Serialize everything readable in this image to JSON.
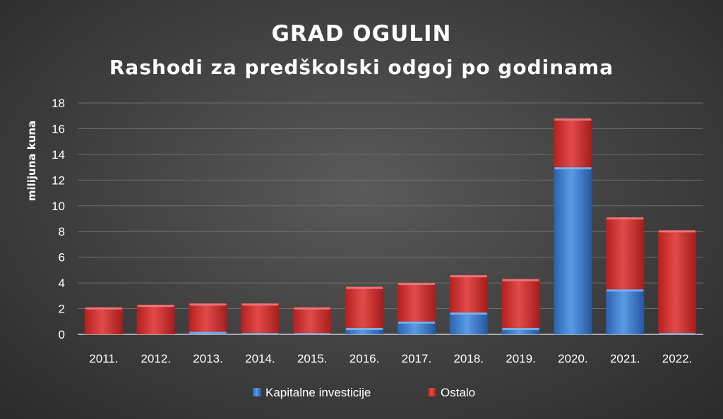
{
  "chart_data": {
    "type": "bar",
    "stacked": true,
    "title": "GRAD OGULIN",
    "subtitle": "Rashodi za predškolski odgoj po godinama",
    "xlabel": "",
    "ylabel": "milijuna kuna",
    "ylim": [
      0,
      18
    ],
    "yticks": [
      0,
      2,
      4,
      6,
      8,
      10,
      12,
      14,
      16,
      18
    ],
    "grid": true,
    "legend_position": "bottom",
    "categories": [
      "2011.",
      "2012.",
      "2013.",
      "2014.",
      "2015.",
      "2016.",
      "2017.",
      "2018.",
      "2019.",
      "2020.",
      "2021.",
      "2022."
    ],
    "series": [
      {
        "name": "Kapitalne investicije",
        "color": "#3b7fd4",
        "values": [
          0.0,
          0.0,
          0.2,
          0.1,
          0.1,
          0.5,
          1.0,
          1.7,
          0.5,
          13.0,
          3.5,
          0.1
        ]
      },
      {
        "name": "Ostalo",
        "color": "#d42f2f",
        "values": [
          2.1,
          2.3,
          2.2,
          2.3,
          2.0,
          3.2,
          3.0,
          2.9,
          3.8,
          3.8,
          5.6,
          8.0
        ]
      }
    ]
  }
}
